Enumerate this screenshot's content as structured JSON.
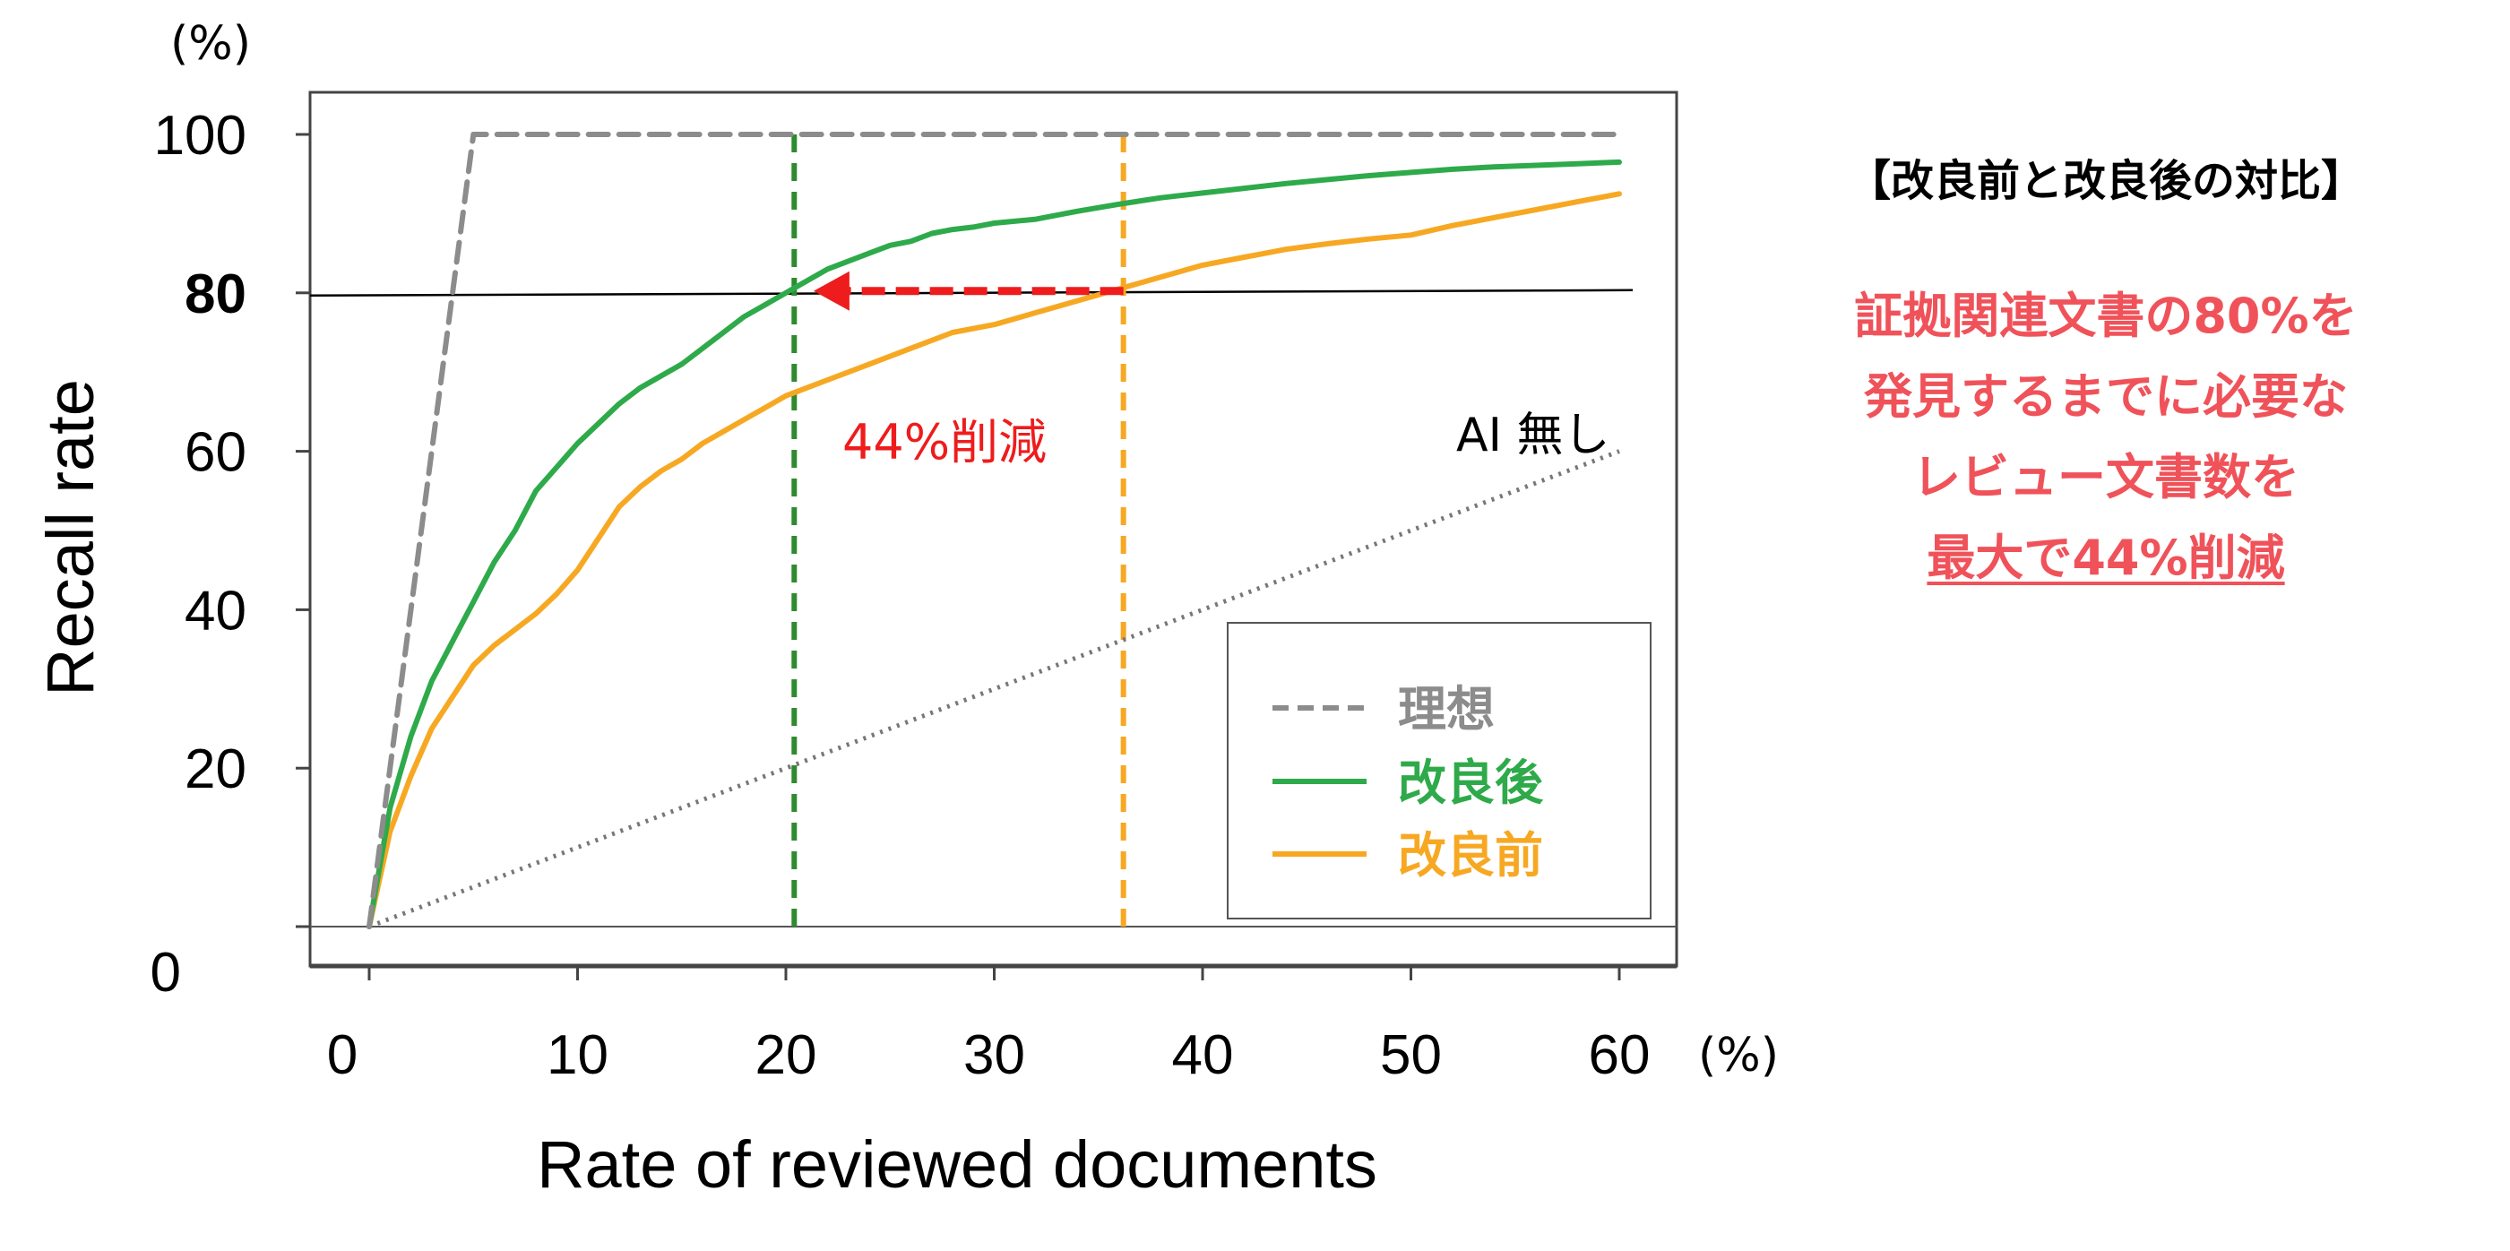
{
  "chart_data": {
    "type": "line",
    "xlabel": "Rate of reviewed documents",
    "ylabel": "Recall rate",
    "x_unit": "(%)",
    "y_unit": "(%)",
    "xlim": [
      0,
      60
    ],
    "ylim": [
      0,
      100
    ],
    "x_ticks": [
      "0",
      "10",
      "20",
      "30",
      "40",
      "50",
      "60"
    ],
    "y_ticks": [
      "0",
      "20",
      "40",
      "60",
      "80",
      "100"
    ],
    "highlight_y_tick": "80",
    "legend_position": "bottom-right",
    "series": [
      {
        "name": "理想",
        "style": "dashed",
        "color": "#8c8c8c",
        "x": [
          0,
          5,
          60
        ],
        "y": [
          0,
          100,
          100
        ]
      },
      {
        "name": "改良後",
        "style": "solid",
        "color": "#2eaa4a",
        "x": [
          0,
          1,
          2,
          3,
          4,
          5,
          6,
          7,
          8,
          9,
          10,
          11,
          12,
          13,
          14,
          15,
          16,
          17,
          18,
          19,
          20,
          21,
          22,
          23,
          24,
          25,
          26,
          27,
          28,
          29,
          30,
          32,
          34,
          36,
          38,
          40,
          42,
          44,
          46,
          48,
          50,
          52,
          54,
          56,
          58,
          60
        ],
        "y": [
          0,
          15,
          24,
          31,
          36,
          41,
          46,
          50,
          55,
          58,
          61,
          63.5,
          66,
          68,
          69.5,
          71,
          73,
          75,
          77,
          78.5,
          80,
          81.5,
          83,
          84,
          85,
          86,
          86.5,
          87.5,
          88,
          88.3,
          88.8,
          89.3,
          90.3,
          91.2,
          92,
          92.6,
          93.2,
          93.8,
          94.3,
          94.8,
          95.2,
          95.6,
          95.9,
          96.1,
          96.3,
          96.5
        ]
      },
      {
        "name": "改良前",
        "style": "solid",
        "color": "#f7a823",
        "x": [
          0,
          1,
          2,
          3,
          4,
          5,
          6,
          7,
          8,
          9,
          10,
          11,
          12,
          13,
          14,
          15,
          16,
          17,
          18,
          19,
          20,
          22,
          24,
          26,
          28,
          30,
          32,
          34,
          36,
          38,
          40,
          42,
          44,
          46,
          48,
          50,
          52,
          54,
          56,
          58,
          60
        ],
        "y": [
          0,
          12,
          19,
          25,
          29,
          33,
          35.5,
          37.5,
          39.5,
          42,
          45,
          49,
          53,
          55.5,
          57.5,
          59,
          61,
          62.5,
          64,
          65.5,
          67,
          69,
          71,
          73,
          75,
          76,
          77.5,
          79,
          80.5,
          82,
          83.5,
          84.5,
          85.5,
          86.2,
          86.8,
          87.3,
          88.5,
          89.5,
          90.5,
          91.5,
          92.5
        ]
      },
      {
        "name": "AI 無し",
        "style": "dotted",
        "color": "#777777",
        "x": [
          0,
          60
        ],
        "y": [
          0,
          60
        ]
      }
    ],
    "reference_lines": {
      "horizontal_y": 80,
      "vertical": [
        {
          "x": 20.4,
          "color": "#2f8a30"
        },
        {
          "x": 36.2,
          "color": "#f7a823"
        }
      ]
    },
    "arrow": {
      "from_x": 36.2,
      "to_x": 21.5,
      "y": 80,
      "color": "#ee1c1c"
    },
    "annotations": {
      "reduction_label": "44%削減",
      "no_ai_label": "AI 無し"
    }
  },
  "side_panel": {
    "title": "【改良前と改良後の対比】",
    "lines": [
      "証拠関連文書の80%を",
      "発見するまでに必要な",
      "レビュー文書数を"
    ],
    "underlined_line": "最大で44%削減"
  },
  "colors": {
    "ideal": "#8c8c8c",
    "improved": "#2eaa4a",
    "before": "#f7a823",
    "arrow": "#ee1c1c",
    "side_text": "#f0525a"
  }
}
